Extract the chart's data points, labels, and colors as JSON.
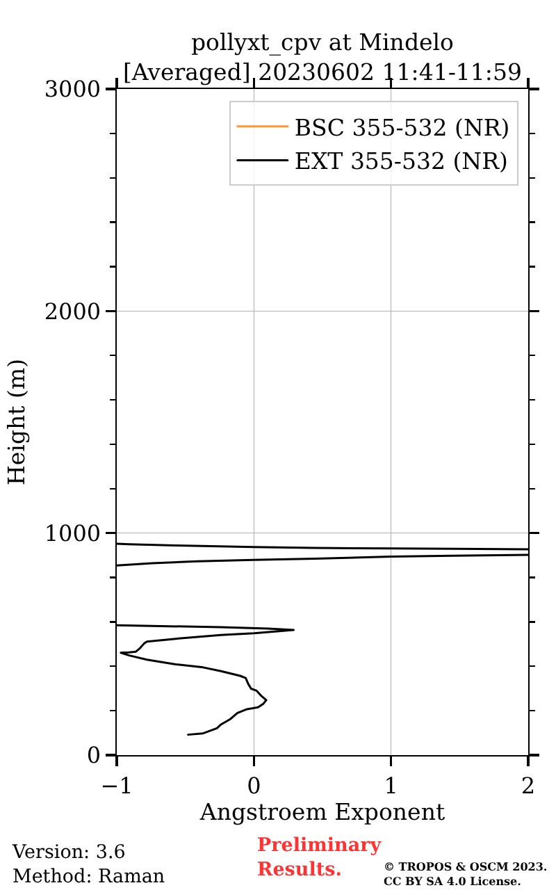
{
  "chart_data": {
    "type": "line",
    "title": "pollyxt_cpv at Mindelo\n[Averaged] 20230602 11:41-11:59",
    "xlabel": "Angstroem Exponent",
    "ylabel": "Height (m)",
    "annotations": [
      "Version: 3.6\nMethod: Raman",
      "Preliminary\nResults.",
      "© TROPOS & OSCM 2023.\nCC BY SA 4.0 License."
    ],
    "series": [
      {
        "name": "BSC 355-532 (NR)",
        "color": "#ff9933"
      },
      {
        "name": "EXT 355-532 (NR)",
        "color": "#000000",
        "x": [
          -0.48,
          -0.37,
          -0.27,
          -0.24,
          -0.17,
          -0.12,
          -0.05,
          0.03,
          0.07,
          0.09,
          0.05,
          0.02,
          -0.02,
          -0.04,
          -0.06,
          -0.1,
          -0.24,
          -0.37,
          -0.57,
          -0.78,
          -0.91,
          -0.97,
          -0.91,
          -0.86,
          -0.83,
          -0.8,
          -0.78,
          -0.57,
          -0.41,
          -0.24,
          0.0,
          0.29,
          0.1,
          -0.24,
          -1.0,
          null,
          -1.0,
          -0.74,
          -0.41,
          0.0,
          0.44,
          1.0,
          1.45,
          2.0,
          null,
          2.0,
          1.45,
          1.0,
          0.44,
          0.0,
          -0.57,
          -0.91,
          -1.0
        ],
        "values": [
          92,
          98,
          121,
          138,
          163,
          190,
          207,
          215,
          232,
          248,
          269,
          290,
          299,
          319,
          347,
          357,
          378,
          395,
          409,
          430,
          449,
          461,
          463,
          466,
          482,
          503,
          511,
          524,
          532,
          541,
          549,
          564,
          570,
          576,
          585,
          null,
          854,
          864,
          873,
          879,
          885,
          894,
          898,
          902,
          null,
          927,
          929,
          931,
          933,
          937,
          944,
          950,
          952
        ]
      }
    ],
    "xlim": [
      -1,
      2
    ],
    "ylim": [
      0,
      3000
    ],
    "xticks": [
      {
        "value": -1,
        "label": "−1"
      },
      0,
      1,
      2
    ],
    "yticks": [
      0,
      {
        "value": 200,
        "label": null
      },
      {
        "value": 400,
        "label": null
      },
      {
        "value": 600,
        "label": null
      },
      {
        "value": 800,
        "label": null
      },
      1000,
      {
        "value": 1200,
        "label": null
      },
      {
        "value": 1400,
        "label": null
      },
      {
        "value": 1600,
        "label": null
      },
      {
        "value": 1800,
        "label": null
      },
      2000,
      {
        "value": 2200,
        "label": null
      },
      {
        "value": 2400,
        "label": null
      },
      {
        "value": 2600,
        "label": null
      },
      {
        "value": 2800,
        "label": null
      },
      3000
    ],
    "grid": true,
    "legend": "top right"
  }
}
